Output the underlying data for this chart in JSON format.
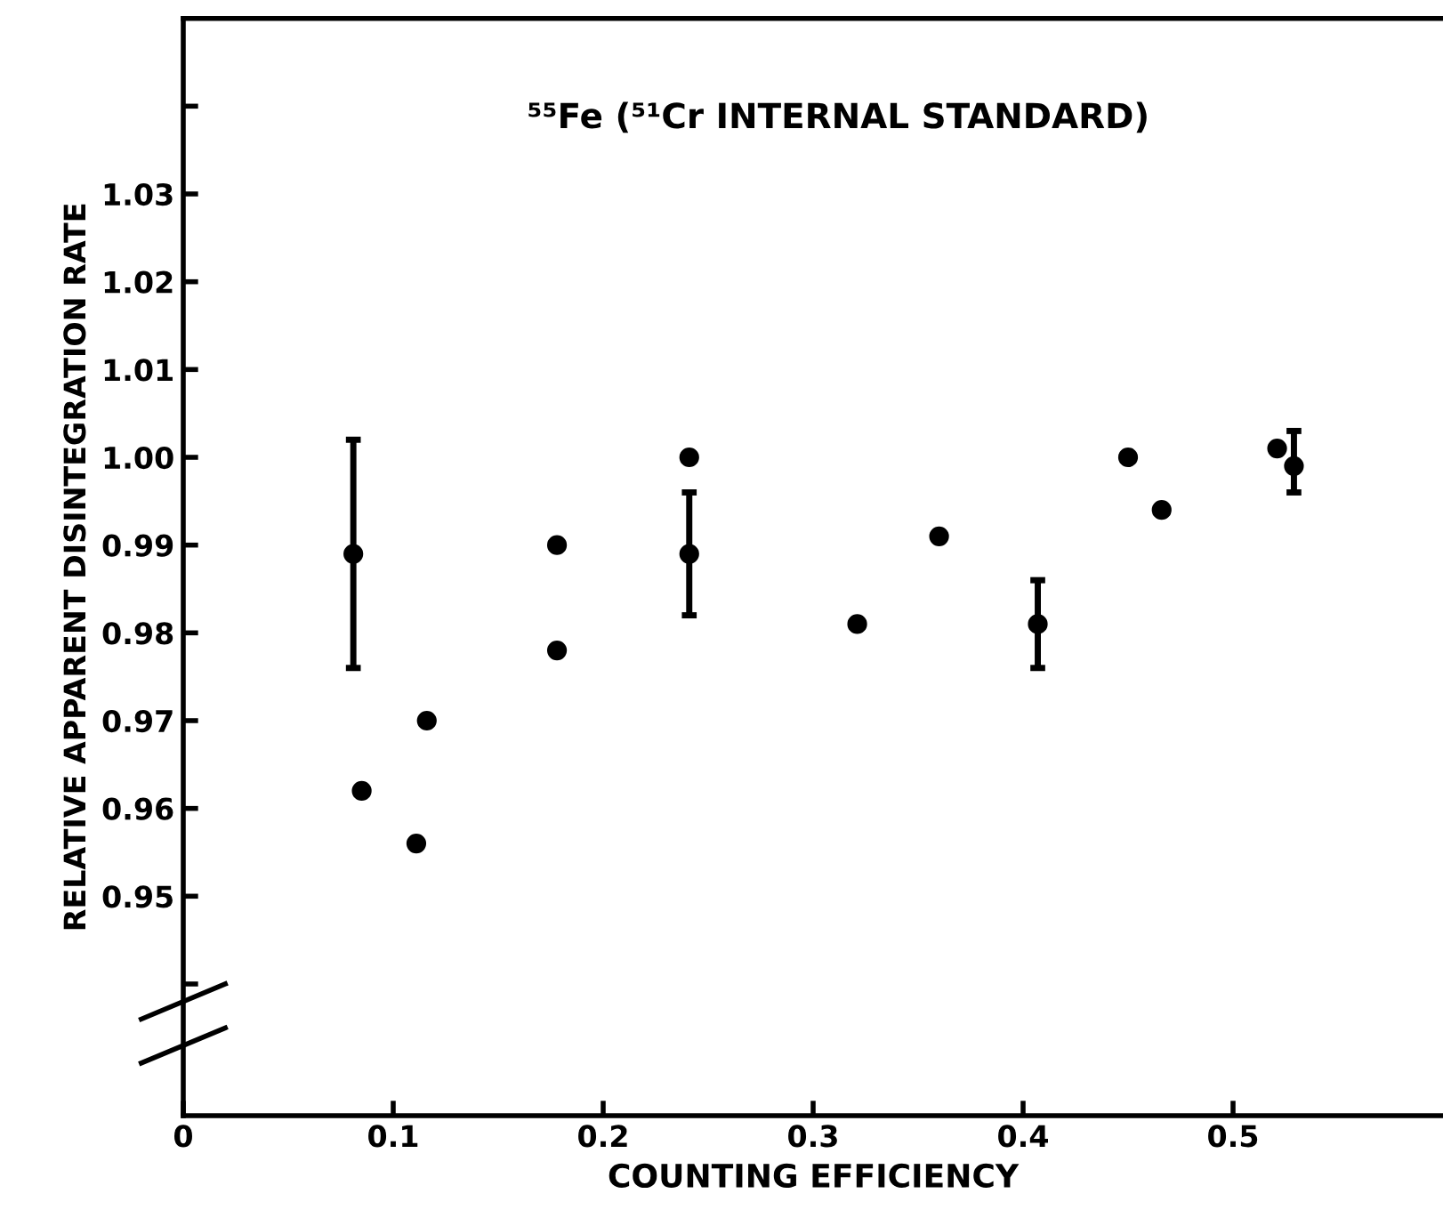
{
  "chart_data": {
    "type": "scatter",
    "title": "⁵⁵Fe (⁵¹Cr INTERNAL STANDARD)",
    "xlabel": "COUNTING EFFICIENCY",
    "ylabel": "RELATIVE APPARENT DISINTEGRATION RATE",
    "series": [
      {
        "color": "#000000",
        "x": [
          0.081,
          0.241,
          0.407,
          0.529
        ],
        "values": [
          0.989,
          0.989,
          0.981,
          0.999
        ],
        "errors": [
          [
            0.976,
            1.002
          ],
          [
            0.982,
            0.996
          ],
          [
            0.976,
            0.986
          ],
          [
            0.996,
            1.003
          ]
        ]
      },
      {
        "color": "#000000",
        "x": [
          0.085,
          0.111,
          0.116,
          0.178,
          0.178,
          0.241,
          0.321,
          0.36,
          0.45,
          0.466,
          0.521
        ],
        "values": [
          0.962,
          0.956,
          0.97,
          0.99,
          0.978,
          1.0,
          0.981,
          0.991,
          1.0,
          0.994,
          1.001
        ]
      }
    ],
    "marker": "circle",
    "xlim": [
      0,
      0.6
    ],
    "ylim": [
      0.925,
      1.05
    ],
    "xticks": [
      0,
      0.1,
      0.2,
      0.3,
      0.4,
      0.5
    ],
    "yticks": [
      {
        "value": 0.94,
        "label": null
      },
      {
        "value": 0.95,
        "label": "0.95"
      },
      {
        "value": 0.96,
        "label": "0.96"
      },
      {
        "value": 0.97,
        "label": "0.97"
      },
      {
        "value": 0.98,
        "label": "0.98"
      },
      {
        "value": 0.99,
        "label": "0.99"
      },
      {
        "value": 1.0,
        "label": "1.00"
      },
      {
        "value": 1.01,
        "label": "1.01"
      },
      {
        "value": 1.02,
        "label": "1.02"
      },
      {
        "value": 1.03,
        "label": "1.03"
      },
      {
        "value": 1.04,
        "label": null
      }
    ],
    "grid": false,
    "legend": false
  }
}
